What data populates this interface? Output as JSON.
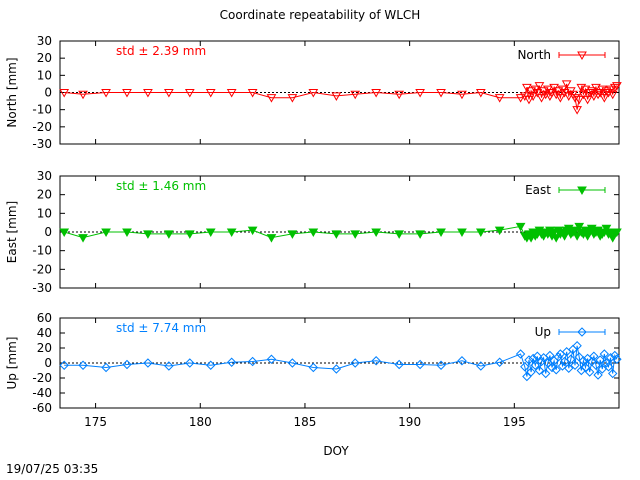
{
  "title": "Coordinate repeatability of WLCH",
  "timestamp": "19/07/25 03:35",
  "xlabel": "DOY",
  "x_ticks": [
    175,
    180,
    185,
    190,
    195
  ],
  "chart_data": [
    {
      "type": "line",
      "name": "North",
      "ylabel": "North [mm]",
      "std_label": "std ± 2.39 mm",
      "color": "#ff0000",
      "marker": "triangle-down-open",
      "xlim": [
        173.3,
        200.0
      ],
      "ylim": [
        -30,
        30
      ],
      "y_ticks": [
        30,
        20,
        10,
        0,
        -10,
        -20,
        -30
      ],
      "grid": false,
      "legend": "top-right",
      "x": [
        173.5,
        174.4,
        175.5,
        176.5,
        177.5,
        178.5,
        179.5,
        180.5,
        181.5,
        182.5,
        183.4,
        184.4,
        185.4,
        186.5,
        187.4,
        188.4,
        189.5,
        190.5,
        191.5,
        192.5,
        193.4,
        194.3,
        195.3,
        195.5,
        195.6,
        195.7,
        195.8,
        195.9,
        196.0,
        196.1,
        196.2,
        196.3,
        196.4,
        196.5,
        196.6,
        196.7,
        196.8,
        196.9,
        197.0,
        197.1,
        197.2,
        197.3,
        197.4,
        197.5,
        197.6,
        197.7,
        197.8,
        197.9,
        198.0,
        198.1,
        198.2,
        198.3,
        198.4,
        198.5,
        198.6,
        198.7,
        198.8,
        198.9,
        199.0,
        199.1,
        199.2,
        199.3,
        199.4,
        199.5,
        199.6,
        199.7,
        199.8,
        199.9
      ],
      "y": [
        0,
        -1,
        0,
        0,
        0,
        0,
        0,
        0,
        0,
        0,
        -3,
        -3,
        0,
        -2,
        -1,
        0,
        -1,
        0,
        0,
        -1,
        0,
        -3,
        -3,
        -2,
        3,
        -4,
        1,
        -2,
        2,
        0,
        4,
        -3,
        1,
        -1,
        2,
        -2,
        0,
        3,
        -1,
        1,
        -3,
        2,
        0,
        5,
        -2,
        1,
        -1,
        -3,
        -10,
        -4,
        3,
        -1,
        2,
        -4,
        0,
        1,
        -2,
        3,
        -1,
        0,
        2,
        -3,
        1,
        0,
        2,
        -1,
        3,
        4
      ]
    },
    {
      "type": "line",
      "name": "East",
      "ylabel": "East [mm]",
      "std_label": "std ± 1.46 mm",
      "color": "#00c000",
      "marker": "triangle-down-filled",
      "xlim": [
        173.3,
        200.0
      ],
      "ylim": [
        -30,
        30
      ],
      "y_ticks": [
        30,
        20,
        10,
        0,
        -10,
        -20,
        -30
      ],
      "grid": false,
      "legend": "top-right",
      "x": [
        173.5,
        174.4,
        175.5,
        176.5,
        177.5,
        178.5,
        179.5,
        180.5,
        181.5,
        182.5,
        183.4,
        184.4,
        185.4,
        186.5,
        187.4,
        188.4,
        189.5,
        190.5,
        191.5,
        192.5,
        193.4,
        194.3,
        195.3,
        195.5,
        195.6,
        195.7,
        195.8,
        195.9,
        196.0,
        196.1,
        196.2,
        196.3,
        196.4,
        196.5,
        196.6,
        196.7,
        196.8,
        196.9,
        197.0,
        197.1,
        197.2,
        197.3,
        197.4,
        197.5,
        197.6,
        197.7,
        197.8,
        197.9,
        198.0,
        198.1,
        198.2,
        198.3,
        198.4,
        198.5,
        198.6,
        198.7,
        198.8,
        198.9,
        199.0,
        199.1,
        199.2,
        199.3,
        199.4,
        199.5,
        199.6,
        199.7,
        199.8,
        199.9
      ],
      "y": [
        0,
        -3,
        0,
        0,
        -1,
        -1,
        -1,
        0,
        0,
        1,
        -3,
        -1,
        0,
        -1,
        -1,
        0,
        -1,
        -1,
        0,
        0,
        0,
        1,
        3,
        -2,
        -3,
        -1,
        -3,
        0,
        -2,
        -1,
        1,
        -1,
        -2,
        0,
        -1,
        1,
        -2,
        0,
        -3,
        1,
        -1,
        0,
        -2,
        1,
        2,
        -1,
        0,
        1,
        -2,
        3,
        0,
        -1,
        1,
        -2,
        0,
        2,
        -1,
        0,
        1,
        -2,
        -1,
        0,
        2,
        -1,
        0,
        -3,
        -1,
        0
      ]
    },
    {
      "type": "line",
      "name": "Up",
      "ylabel": "Up [mm]",
      "std_label": "std ± 7.74 mm",
      "color": "#0080ff",
      "marker": "diamond-open",
      "xlim": [
        173.3,
        200.0
      ],
      "ylim": [
        -60,
        60
      ],
      "y_ticks": [
        60,
        40,
        20,
        0,
        -20,
        -40,
        -60
      ],
      "grid": false,
      "legend": "top-right",
      "x": [
        173.5,
        174.4,
        175.5,
        176.5,
        177.5,
        178.5,
        179.5,
        180.5,
        181.5,
        182.5,
        183.4,
        184.4,
        185.4,
        186.5,
        187.4,
        188.4,
        189.5,
        190.5,
        191.5,
        192.5,
        193.4,
        194.3,
        195.3,
        195.5,
        195.6,
        195.7,
        195.8,
        195.9,
        196.0,
        196.1,
        196.2,
        196.3,
        196.4,
        196.5,
        196.6,
        196.7,
        196.8,
        196.9,
        197.0,
        197.1,
        197.2,
        197.3,
        197.4,
        197.5,
        197.6,
        197.7,
        197.8,
        197.9,
        198.0,
        198.1,
        198.2,
        198.3,
        198.4,
        198.5,
        198.6,
        198.7,
        198.8,
        198.9,
        199.0,
        199.1,
        199.2,
        199.3,
        199.4,
        199.5,
        199.6,
        199.7,
        199.8,
        199.9
      ],
      "y": [
        -3,
        -3,
        -6,
        -2,
        0,
        -4,
        0,
        -3,
        1,
        2,
        5,
        0,
        -6,
        -8,
        0,
        3,
        -2,
        -2,
        -3,
        3,
        -4,
        1,
        12,
        -5,
        -18,
        4,
        -12,
        6,
        -3,
        9,
        -10,
        2,
        7,
        -14,
        0,
        10,
        -6,
        3,
        -9,
        8,
        12,
        -4,
        2,
        15,
        -7,
        5,
        18,
        -3,
        23,
        8,
        -10,
        3,
        -6,
        6,
        -12,
        2,
        9,
        -3,
        -16,
        4,
        -8,
        12,
        0,
        -5,
        7,
        -14,
        10,
        5
      ]
    }
  ]
}
